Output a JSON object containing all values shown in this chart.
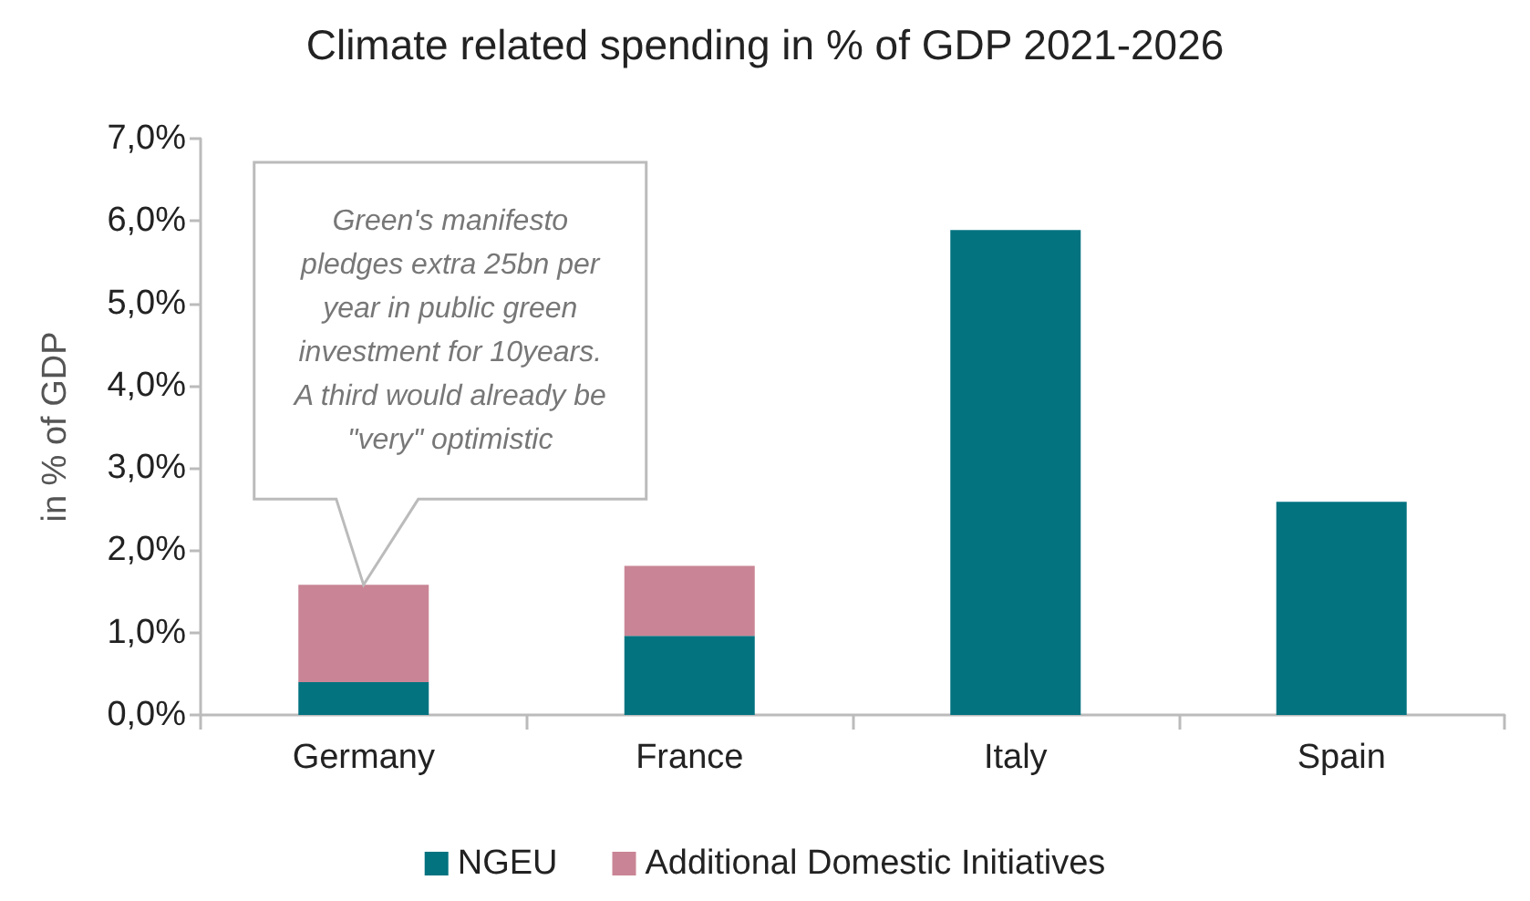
{
  "chart_data": {
    "type": "bar",
    "title": "Climate related spending in % of GDP 2021-2026",
    "ylabel": "in % of GDP",
    "categories": [
      "Germany",
      "France",
      "Italy",
      "Spain"
    ],
    "stacked": true,
    "series": [
      {
        "name": "NGEU",
        "color": "#037380",
        "values": [
          0.4,
          0.96,
          5.89,
          2.59
        ]
      },
      {
        "name": "Additional Domestic Initiatives",
        "color": "#c98595",
        "values": [
          1.18,
          0.85,
          null,
          null
        ]
      }
    ],
    "ylim": [
      0,
      7
    ],
    "yticks": [
      {
        "value": 0,
        "label": "0,0%"
      },
      {
        "value": 1,
        "label": "1,0%"
      },
      {
        "value": 2,
        "label": "2,0%"
      },
      {
        "value": 3,
        "label": "3,0%"
      },
      {
        "value": 4,
        "label": "4,0%"
      },
      {
        "value": 5,
        "label": "5,0%"
      },
      {
        "value": 6,
        "label": "6,0%"
      },
      {
        "value": 7,
        "label": "7,0%"
      }
    ],
    "grid": false,
    "legend": "bottom",
    "annotations": [
      "Green's manifesto\npledges extra 25bn per\nyear in public green\ninvestment for 10years.\nA third would already be\n\"very\" optimistic"
    ]
  }
}
